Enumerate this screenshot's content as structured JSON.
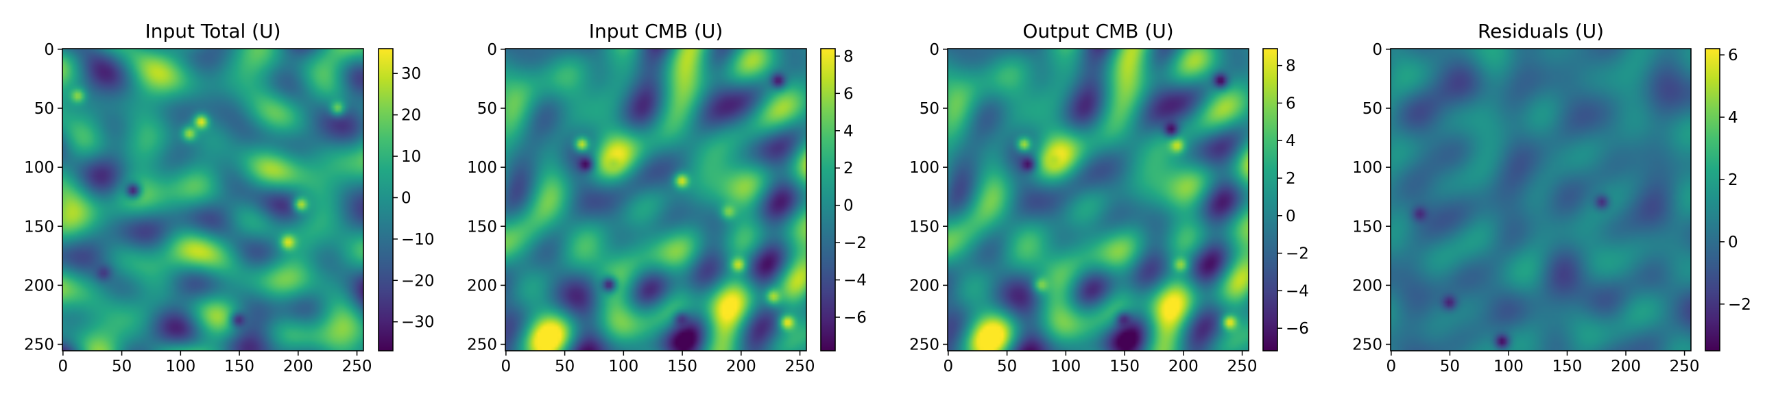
{
  "chart_data": [
    {
      "type": "heatmap",
      "title": "Input Total (U)",
      "xlabel": "",
      "ylabel": "",
      "xlim": [
        0,
        255
      ],
      "ylim": [
        255,
        0
      ],
      "x_ticks": [
        0,
        50,
        100,
        150,
        200,
        250
      ],
      "y_ticks": [
        0,
        50,
        100,
        150,
        200,
        250
      ],
      "colormap": "viridis",
      "colorbar": {
        "min": -37,
        "max": 36,
        "ticks": [
          30,
          20,
          10,
          0,
          -10,
          -20,
          -30
        ]
      },
      "field_seed": 11,
      "field_scale": 0.9,
      "hot_spots": [
        [
          118,
          62,
          34
        ],
        [
          192,
          164,
          33
        ],
        [
          203,
          132,
          28
        ],
        [
          108,
          72,
          26
        ],
        [
          13,
          40,
          24
        ],
        [
          234,
          50,
          20
        ]
      ],
      "cold_spots": [
        [
          60,
          120,
          -30
        ],
        [
          150,
          230,
          -28
        ],
        [
          35,
          190,
          -25
        ]
      ]
    },
    {
      "type": "heatmap",
      "title": "Input CMB (U)",
      "xlabel": "",
      "ylabel": "",
      "xlim": [
        0,
        255
      ],
      "ylim": [
        255,
        0
      ],
      "x_ticks": [
        0,
        50,
        100,
        150,
        200,
        250
      ],
      "y_ticks": [
        0,
        50,
        100,
        150,
        200,
        250
      ],
      "colormap": "viridis",
      "colorbar": {
        "min": -7.8,
        "max": 8.4,
        "ticks": [
          8,
          6,
          4,
          2,
          0,
          -2,
          -4,
          -6
        ]
      },
      "field_seed": 23,
      "field_scale": 0.85,
      "hot_spots": [
        [
          240,
          232,
          8.2
        ],
        [
          150,
          112,
          7.5
        ],
        [
          198,
          183,
          7.3
        ],
        [
          65,
          81,
          7.0
        ],
        [
          228,
          210,
          6.5
        ],
        [
          92,
          98,
          6.0
        ],
        [
          190,
          138,
          5.5
        ]
      ],
      "cold_spots": [
        [
          68,
          98,
          -7.5
        ],
        [
          232,
          27,
          -6.8
        ],
        [
          88,
          200,
          -6.2
        ],
        [
          150,
          230,
          -5.5
        ]
      ]
    },
    {
      "type": "heatmap",
      "title": "Output CMB (U)",
      "xlabel": "",
      "ylabel": "",
      "xlim": [
        0,
        255
      ],
      "ylim": [
        255,
        0
      ],
      "x_ticks": [
        0,
        50,
        100,
        150,
        200,
        250
      ],
      "y_ticks": [
        0,
        50,
        100,
        150,
        200,
        250
      ],
      "colormap": "viridis",
      "colorbar": {
        "min": -7.2,
        "max": 8.9,
        "ticks": [
          8,
          6,
          4,
          2,
          0,
          -2,
          -4,
          -6
        ]
      },
      "field_seed": 23,
      "field_scale": 0.85,
      "hot_spots": [
        [
          240,
          232,
          8.6
        ],
        [
          195,
          82,
          7.8
        ],
        [
          90,
          95,
          7.0
        ],
        [
          65,
          81,
          6.8
        ],
        [
          198,
          183,
          6.5
        ],
        [
          80,
          200,
          6.0
        ]
      ],
      "cold_spots": [
        [
          232,
          27,
          -7.0
        ],
        [
          190,
          68,
          -6.8
        ],
        [
          68,
          98,
          -6.5
        ],
        [
          150,
          230,
          -5.5
        ]
      ]
    },
    {
      "type": "heatmap",
      "title": "Residuals (U)",
      "xlabel": "",
      "ylabel": "",
      "xlim": [
        0,
        255
      ],
      "ylim": [
        255,
        0
      ],
      "x_ticks": [
        0,
        50,
        100,
        150,
        200,
        250
      ],
      "y_ticks": [
        0,
        50,
        100,
        150,
        200,
        250
      ],
      "colormap": "viridis",
      "colorbar": {
        "min": -3.5,
        "max": 6.2,
        "ticks": [
          6,
          4,
          2,
          0,
          -2
        ]
      },
      "field_seed": 47,
      "field_scale": 0.35,
      "field_offset": -0.1,
      "hot_spots": [],
      "cold_spots": [
        [
          95,
          248,
          -3.2
        ],
        [
          50,
          215,
          -2.6
        ],
        [
          25,
          140,
          -2.4
        ],
        [
          180,
          130,
          -2.2
        ]
      ]
    }
  ]
}
